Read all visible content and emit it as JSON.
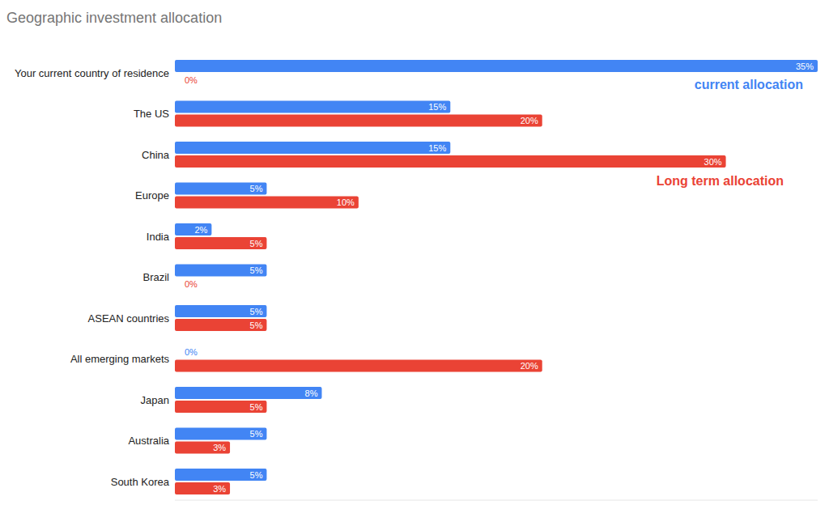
{
  "chart_data": {
    "type": "bar",
    "title": "Geographic investment allocation",
    "orientation": "horizontal",
    "categories": [
      "Your current country of residence",
      "The US",
      "China",
      "Europe",
      "India",
      "Brazil",
      "ASEAN countries",
      "All emerging markets",
      "Japan",
      "Australia",
      "South Korea"
    ],
    "series": [
      {
        "name": "current allocation",
        "color": "#4285f4",
        "values": [
          35,
          15,
          15,
          5,
          2,
          5,
          5,
          0,
          8,
          5,
          5
        ],
        "value_labels": [
          "35%",
          "15%",
          "15%",
          "5%",
          "2%",
          "5%",
          "5%",
          "0%",
          "8%",
          "5%",
          "5%"
        ]
      },
      {
        "name": "Long term allocation",
        "color": "#ea4335",
        "values": [
          0,
          20,
          30,
          10,
          5,
          0,
          5,
          20,
          5,
          3,
          3
        ],
        "value_labels": [
          "0%",
          "20%",
          "30%",
          "10%",
          "5%",
          "0%",
          "5%",
          "20%",
          "5%",
          "3%",
          "3%"
        ]
      }
    ],
    "xlim": [
      0,
      35
    ],
    "data_labels": true,
    "tick_labels": "y"
  }
}
